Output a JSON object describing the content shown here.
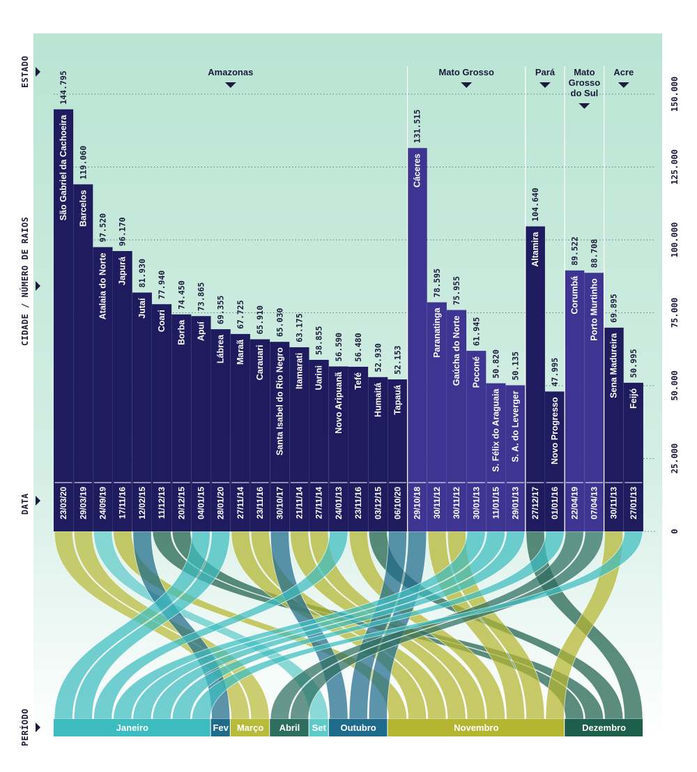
{
  "axis_labels": {
    "estado": "ESTADO",
    "cidade": "CIDADE / NÚMERO DE RAIOS",
    "data": "DATA",
    "periodo": "PERÍODO"
  },
  "colors": {
    "background_top": "#b8e3d3",
    "background_bottom": "#ffffff",
    "amazonas": "#1e1b5e",
    "mato_grosso": "#3d3591",
    "para": "#1e1b5e",
    "mato_grosso_do_sul": "#3d3591",
    "acre": "#1e1b5e"
  },
  "chart_data": {
    "type": "bar",
    "ylim": [
      0,
      150000
    ],
    "yticks": [
      "0",
      "25.000",
      "50.000",
      "75.000",
      "100.000",
      "125.000",
      "150.000"
    ],
    "grid": true,
    "states": [
      {
        "name": "Amazonas",
        "count": 18
      },
      {
        "name": "Mato Grosso",
        "count": 6
      },
      {
        "name": "Pará",
        "count": 2
      },
      {
        "name": "Mato Grosso do Sul",
        "label_lines": [
          "Mato",
          "Grosso",
          "do Sul"
        ],
        "count": 2
      },
      {
        "name": "Acre",
        "count": 2
      }
    ],
    "bars": [
      {
        "city": "São Gabriel da Cachoeira",
        "value": 144795,
        "label": "144.795",
        "date": "23/03/20",
        "state": "Amazonas",
        "month": "Março"
      },
      {
        "city": "Barcelos",
        "value": 119060,
        "label": "119.060",
        "date": "29/03/19",
        "state": "Amazonas",
        "month": "Março"
      },
      {
        "city": "Atalaia do Norte",
        "value": 97520,
        "label": "97.520",
        "date": "24/09/19",
        "state": "Amazonas",
        "month": "Set"
      },
      {
        "city": "Japurá",
        "value": 96170,
        "label": "96.170",
        "date": "17/11/16",
        "state": "Amazonas",
        "month": "Novembro"
      },
      {
        "city": "Jutaí",
        "value": 81930,
        "label": "81.930",
        "date": "12/02/15",
        "state": "Amazonas",
        "month": "Fev"
      },
      {
        "city": "Coari",
        "value": 77940,
        "label": "77.940",
        "date": "11/12/13",
        "state": "Amazonas",
        "month": "Dezembro"
      },
      {
        "city": "Borba",
        "value": 74450,
        "label": "74.450",
        "date": "20/12/15",
        "state": "Amazonas",
        "month": "Dezembro"
      },
      {
        "city": "Apuí",
        "value": 73865,
        "label": "73.865",
        "date": "04/01/15",
        "state": "Amazonas",
        "month": "Janeiro"
      },
      {
        "city": "Lábrea",
        "value": 69355,
        "label": "69.355",
        "date": "28/01/20",
        "state": "Amazonas",
        "month": "Janeiro"
      },
      {
        "city": "Maraã",
        "value": 67725,
        "label": "67.725",
        "date": "27/11/14",
        "state": "Amazonas",
        "month": "Novembro"
      },
      {
        "city": "Carauari",
        "value": 65910,
        "label": "65.910",
        "date": "23/11/16",
        "state": "Amazonas",
        "month": "Novembro"
      },
      {
        "city": "Santa Isabel do Rio Negro",
        "value": 65030,
        "label": "65.030",
        "date": "30/10/17",
        "state": "Amazonas",
        "month": "Outubro"
      },
      {
        "city": "Itamarati",
        "value": 63175,
        "label": "63.175",
        "date": "21/11/14",
        "state": "Amazonas",
        "month": "Novembro"
      },
      {
        "city": "Uarini",
        "value": 58855,
        "label": "58.855",
        "date": "27/11/14",
        "state": "Amazonas",
        "month": "Novembro"
      },
      {
        "city": "Novo Aripuanã",
        "value": 56590,
        "label": "56.590",
        "date": "24/01/13",
        "state": "Amazonas",
        "month": "Janeiro"
      },
      {
        "city": "Tefé",
        "value": 56480,
        "label": "56.480",
        "date": "23/11/16",
        "state": "Amazonas",
        "month": "Novembro"
      },
      {
        "city": "Humaitá",
        "value": 52930,
        "label": "52.930",
        "date": "03/12/15",
        "state": "Amazonas",
        "month": "Dezembro"
      },
      {
        "city": "Tapauá",
        "value": 52153,
        "label": "52.153",
        "date": "06/10/20",
        "state": "Amazonas",
        "month": "Outubro"
      },
      {
        "city": "Cáceres",
        "value": 131515,
        "label": "131.515",
        "date": "29/10/18",
        "state": "Mato Grosso",
        "month": "Outubro"
      },
      {
        "city": "Paranatinga",
        "value": 78595,
        "label": "78.595",
        "date": "30/11/12",
        "state": "Mato Grosso",
        "month": "Novembro"
      },
      {
        "city": "Gaúcha do Norte",
        "value": 75955,
        "label": "75.955",
        "date": "30/11/12",
        "state": "Mato Grosso",
        "month": "Novembro"
      },
      {
        "city": "Poconé",
        "value": 61945,
        "label": "61.945",
        "date": "30/01/13",
        "state": "Mato Grosso",
        "month": "Janeiro"
      },
      {
        "city": "S. Félix do Araguaia",
        "value": 50820,
        "label": "50.820",
        "date": "11/01/15",
        "state": "Mato Grosso",
        "month": "Janeiro"
      },
      {
        "city": "S. A. do Leverger",
        "value": 50135,
        "label": "50.135",
        "date": "29/01/13",
        "state": "Mato Grosso",
        "month": "Janeiro"
      },
      {
        "city": "Altamira",
        "value": 104640,
        "label": "104.640",
        "date": "27/12/17",
        "state": "Pará",
        "month": "Dezembro"
      },
      {
        "city": "Novo Progresso",
        "value": 47995,
        "label": "47.995",
        "date": "01/01/16",
        "state": "Pará",
        "month": "Janeiro"
      },
      {
        "city": "Corumbá",
        "value": 89522,
        "label": "89.522",
        "date": "22/04/19",
        "state": "Mato Grosso do Sul",
        "month": "Abril"
      },
      {
        "city": "Porto Murtinho",
        "value": 88708,
        "label": "88.708",
        "date": "07/04/13",
        "state": "Mato Grosso do Sul",
        "month": "Abril"
      },
      {
        "city": "Sena Madureira",
        "value": 69895,
        "label": "69.895",
        "date": "30/11/13",
        "state": "Acre",
        "month": "Novembro"
      },
      {
        "city": "Feijó",
        "value": 50995,
        "label": "50.995",
        "date": "27/01/13",
        "state": "Acre",
        "month": "Janeiro"
      }
    ],
    "periods": [
      {
        "name": "Janeiro",
        "count": 8,
        "color": "#3dbcbf"
      },
      {
        "name": "Fev",
        "count": 1,
        "color": "#1d6b88"
      },
      {
        "name": "Março",
        "count": 2,
        "color": "#b8bb3a"
      },
      {
        "name": "Abril",
        "count": 2,
        "color": "#2d6e5f"
      },
      {
        "name": "Set",
        "count": 1,
        "color": "#5fcbc9"
      },
      {
        "name": "Outubro",
        "count": 3,
        "color": "#1f6b8c"
      },
      {
        "name": "Novembro",
        "count": 9,
        "color": "#b4b530"
      },
      {
        "name": "Dezembro",
        "count": 4,
        "color": "#1e5f4b"
      }
    ]
  }
}
